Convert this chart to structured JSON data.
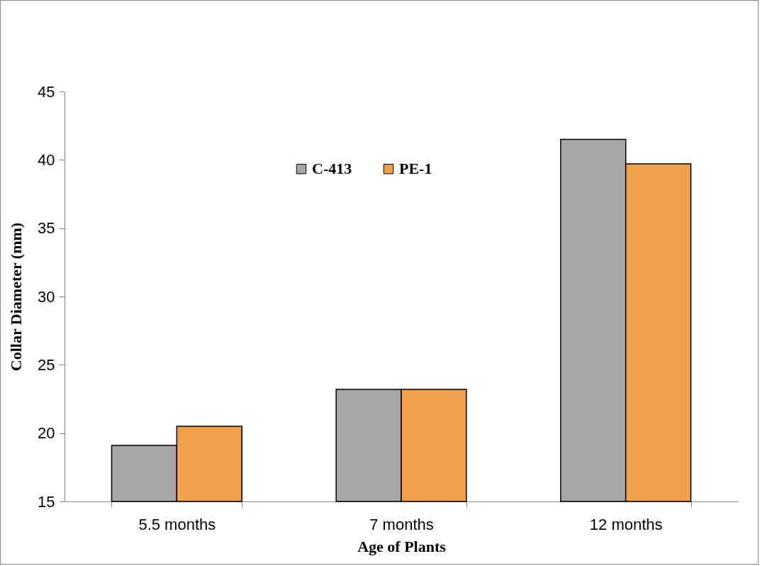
{
  "chart_data": {
    "type": "bar",
    "xlabel": "Age of Plants",
    "ylabel": "Collar Diameter (mm)",
    "categories": [
      "5.5 months",
      "7 months",
      "12 months"
    ],
    "series": [
      {
        "name": "C-413",
        "color": "#a6a6a6",
        "values": [
          19.1,
          23.2,
          41.5
        ]
      },
      {
        "name": "PE-1",
        "color": "#f0a048",
        "values": [
          20.5,
          23.2,
          39.7
        ]
      }
    ],
    "ylim": [
      15,
      45
    ],
    "yticks": [
      15,
      20,
      25,
      30,
      35,
      40,
      45
    ],
    "grid": false,
    "legend": "top"
  }
}
